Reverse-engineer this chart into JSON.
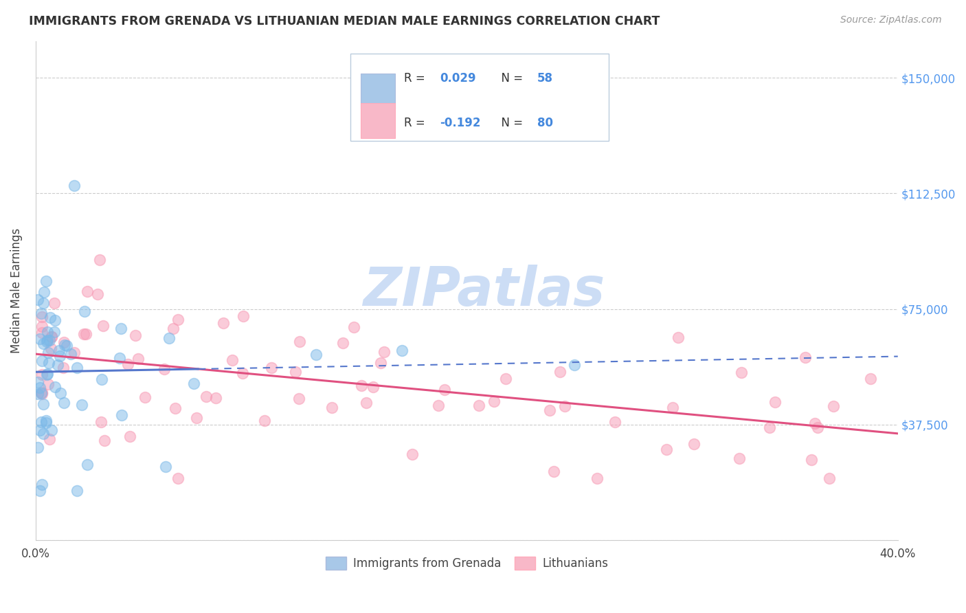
{
  "title": "IMMIGRANTS FROM GRENADA VS LITHUANIAN MEDIAN MALE EARNINGS CORRELATION CHART",
  "source": "Source: ZipAtlas.com",
  "ylabel": "Median Male Earnings",
  "y_ticks": [
    0,
    37500,
    75000,
    112500,
    150000
  ],
  "y_tick_labels": [
    "",
    "$37,500",
    "$75,000",
    "$112,500",
    "$150,000"
  ],
  "x_min": 0.0,
  "x_max": 0.4,
  "y_min": 0,
  "y_max": 162000,
  "bottom_legend": [
    "Immigrants from Grenada",
    "Lithuanians"
  ],
  "blue_scatter_color": "#7ab8e8",
  "pink_scatter_color": "#f799b4",
  "blue_line_color": "#5577cc",
  "pink_line_color": "#e05080",
  "blue_patch_color": "#a8c8e8",
  "pink_patch_color": "#f8b8c8",
  "watermark": "ZIPatlas",
  "watermark_color": "#ccddf5",
  "title_color": "#333333",
  "source_color": "#999999",
  "legend_R_color": "#333333",
  "legend_N_color": "#4488dd",
  "legend_R1": "R =  0.029",
  "legend_N1": "N = 58",
  "legend_R2": "R = -0.192",
  "legend_N2": "N = 80",
  "grid_color": "#cccccc"
}
